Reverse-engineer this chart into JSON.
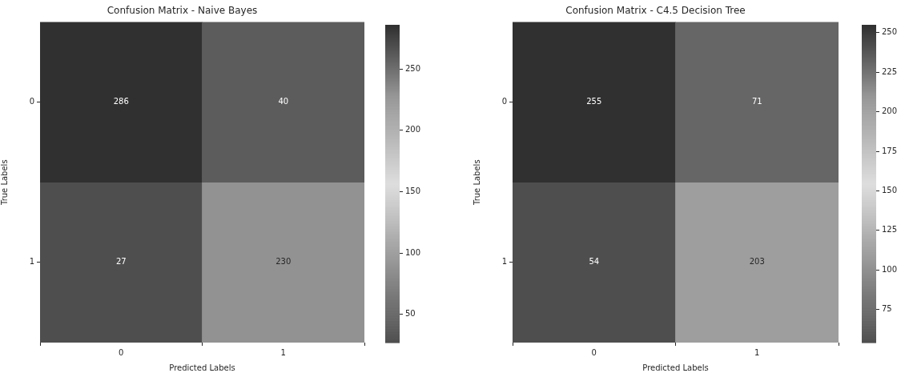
{
  "chart_data": [
    {
      "type": "heatmap",
      "title": "Confusion Matrix - Naive Bayes",
      "xlabel": "Predicted Labels",
      "ylabel": "True Labels",
      "categories": [
        "0",
        "1"
      ],
      "y_categories": [
        "0",
        "1"
      ],
      "cells": [
        [
          286,
          40
        ],
        [
          27,
          230
        ]
      ],
      "clim": [
        27,
        286
      ],
      "cticks": [
        50,
        100,
        150,
        200,
        250
      ],
      "data_labels": true
    },
    {
      "type": "heatmap",
      "title": "Confusion Matrix - C4.5 Decision Tree",
      "xlabel": "Predicted Labels",
      "ylabel": "True Labels",
      "categories": [
        "0",
        "1"
      ],
      "y_categories": [
        "0",
        "1"
      ],
      "cells": [
        [
          255,
          71
        ],
        [
          54,
          203
        ]
      ],
      "clim": [
        54,
        255
      ],
      "cticks": [
        75,
        100,
        125,
        150,
        175,
        200,
        225,
        250
      ],
      "data_labels": true
    }
  ]
}
